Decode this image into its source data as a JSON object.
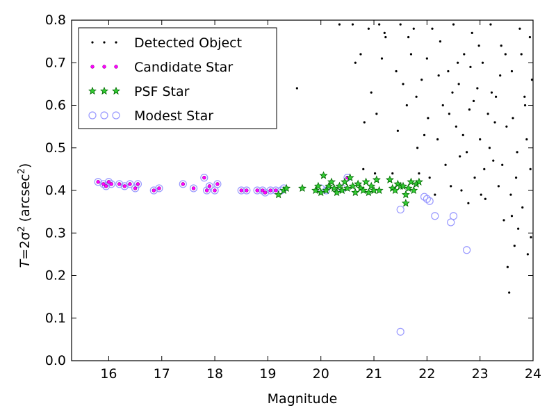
{
  "chart_data": {
    "type": "scatter",
    "xlabel": "Magnitude",
    "ylabel_main": "T",
    "ylabel_eq": "=2σ",
    "ylabel_exp": "2",
    "ylabel_unit_open": " (arcsec",
    "ylabel_unit_exp": "2",
    "ylabel_unit_close": ")",
    "xlim": [
      15.3,
      24
    ],
    "ylim": [
      0,
      0.8
    ],
    "xticks": [
      16,
      17,
      18,
      19,
      20,
      21,
      22,
      23,
      24
    ],
    "yticks": [
      0.0,
      0.1,
      0.2,
      0.3,
      0.4,
      0.5,
      0.6,
      0.7,
      0.8
    ],
    "ytick_labels": [
      "0.0",
      "0.1",
      "0.2",
      "0.3",
      "0.4",
      "0.5",
      "0.6",
      "0.7",
      "0.8"
    ],
    "legend_position": "upper-left",
    "colors": {
      "detected": "#000000",
      "candidate": "#ff00ff",
      "psf_fill": "#33cc33",
      "psf_edge": "#006600",
      "modest": "#9999ff"
    },
    "series": [
      {
        "name": "Detected Object",
        "marker": "dot",
        "points": [
          [
            19.55,
            0.64
          ],
          [
            20.35,
            0.79
          ],
          [
            20.6,
            0.79
          ],
          [
            20.65,
            0.7
          ],
          [
            20.75,
            0.72
          ],
          [
            20.8,
            0.45
          ],
          [
            20.9,
            0.78
          ],
          [
            20.95,
            0.63
          ],
          [
            21.05,
            0.58
          ],
          [
            21.1,
            0.79
          ],
          [
            21.15,
            0.71
          ],
          [
            21.2,
            0.77
          ],
          [
            21.35,
            0.44
          ],
          [
            21.45,
            0.54
          ],
          [
            21.5,
            0.79
          ],
          [
            21.55,
            0.65
          ],
          [
            21.65,
            0.76
          ],
          [
            21.7,
            0.72
          ],
          [
            21.75,
            0.78
          ],
          [
            21.8,
            0.62
          ],
          [
            21.85,
            0.44
          ],
          [
            21.9,
            0.66
          ],
          [
            21.95,
            0.53
          ],
          [
            22.0,
            0.71
          ],
          [
            22.05,
            0.43
          ],
          [
            22.1,
            0.78
          ],
          [
            22.15,
            0.39
          ],
          [
            22.2,
            0.52
          ],
          [
            22.25,
            0.75
          ],
          [
            22.3,
            0.6
          ],
          [
            22.35,
            0.46
          ],
          [
            22.4,
            0.68
          ],
          [
            22.45,
            0.41
          ],
          [
            22.5,
            0.79
          ],
          [
            22.55,
            0.55
          ],
          [
            22.6,
            0.65
          ],
          [
            22.65,
            0.4
          ],
          [
            22.7,
            0.72
          ],
          [
            22.75,
            0.49
          ],
          [
            22.8,
            0.59
          ],
          [
            22.85,
            0.77
          ],
          [
            22.9,
            0.43
          ],
          [
            22.95,
            0.64
          ],
          [
            23.0,
            0.52
          ],
          [
            23.05,
            0.7
          ],
          [
            23.1,
            0.38
          ],
          [
            23.15,
            0.58
          ],
          [
            23.2,
            0.79
          ],
          [
            23.25,
            0.47
          ],
          [
            23.3,
            0.62
          ],
          [
            23.35,
            0.41
          ],
          [
            23.4,
            0.74
          ],
          [
            23.45,
            0.33
          ],
          [
            23.5,
            0.55
          ],
          [
            23.55,
            0.16
          ],
          [
            23.6,
            0.68
          ],
          [
            23.65,
            0.27
          ],
          [
            23.7,
            0.49
          ],
          [
            23.75,
            0.78
          ],
          [
            23.8,
            0.36
          ],
          [
            23.85,
            0.6
          ],
          [
            23.9,
            0.25
          ],
          [
            23.95,
            0.45
          ],
          [
            23.98,
            0.66
          ],
          [
            23.52,
            0.22
          ],
          [
            23.72,
            0.31
          ],
          [
            23.88,
            0.52
          ],
          [
            23.62,
            0.57
          ],
          [
            23.42,
            0.46
          ],
          [
            23.22,
            0.63
          ],
          [
            23.02,
            0.39
          ],
          [
            22.82,
            0.69
          ],
          [
            22.62,
            0.48
          ],
          [
            22.42,
            0.58
          ],
          [
            22.22,
            0.67
          ],
          [
            22.02,
            0.57
          ],
          [
            21.82,
            0.5
          ],
          [
            21.62,
            0.6
          ],
          [
            21.42,
            0.68
          ],
          [
            21.22,
            0.76
          ],
          [
            21.02,
            0.44
          ],
          [
            20.82,
            0.56
          ],
          [
            22.58,
            0.7
          ],
          [
            22.78,
            0.37
          ],
          [
            22.98,
            0.74
          ],
          [
            23.18,
            0.5
          ],
          [
            23.38,
            0.67
          ],
          [
            23.58,
            0.39
          ],
          [
            23.78,
            0.72
          ],
          [
            23.96,
            0.29
          ],
          [
            22.48,
            0.63
          ],
          [
            22.68,
            0.53
          ],
          [
            22.88,
            0.61
          ],
          [
            23.08,
            0.45
          ],
          [
            23.28,
            0.56
          ],
          [
            23.48,
            0.72
          ],
          [
            23.68,
            0.43
          ],
          [
            23.84,
            0.62
          ],
          [
            23.94,
            0.76
          ],
          [
            23.6,
            0.34
          ]
        ]
      },
      {
        "name": "Candidate Star",
        "marker": "small-circle",
        "points": [
          [
            15.8,
            0.42
          ],
          [
            15.9,
            0.415
          ],
          [
            15.95,
            0.41
          ],
          [
            16.0,
            0.42
          ],
          [
            16.05,
            0.415
          ],
          [
            16.2,
            0.415
          ],
          [
            16.3,
            0.41
          ],
          [
            16.4,
            0.415
          ],
          [
            16.5,
            0.405
          ],
          [
            16.55,
            0.415
          ],
          [
            16.85,
            0.4
          ],
          [
            16.95,
            0.405
          ],
          [
            17.4,
            0.415
          ],
          [
            17.6,
            0.405
          ],
          [
            17.8,
            0.43
          ],
          [
            17.85,
            0.4
          ],
          [
            17.9,
            0.41
          ],
          [
            18.0,
            0.4
          ],
          [
            18.05,
            0.415
          ],
          [
            18.5,
            0.4
          ],
          [
            18.6,
            0.4
          ],
          [
            18.8,
            0.4
          ],
          [
            18.9,
            0.4
          ],
          [
            18.95,
            0.395
          ],
          [
            19.05,
            0.4
          ],
          [
            19.15,
            0.4
          ],
          [
            20.5,
            0.43
          ]
        ]
      },
      {
        "name": "PSF Star",
        "marker": "star",
        "points": [
          [
            19.2,
            0.39
          ],
          [
            19.3,
            0.4
          ],
          [
            19.35,
            0.405
          ],
          [
            19.65,
            0.405
          ],
          [
            19.9,
            0.4
          ],
          [
            19.95,
            0.41
          ],
          [
            20.0,
            0.395
          ],
          [
            20.05,
            0.435
          ],
          [
            20.1,
            0.4
          ],
          [
            20.15,
            0.41
          ],
          [
            20.2,
            0.42
          ],
          [
            20.25,
            0.405
          ],
          [
            20.3,
            0.395
          ],
          [
            20.35,
            0.41
          ],
          [
            20.4,
            0.4
          ],
          [
            20.45,
            0.42
          ],
          [
            20.5,
            0.405
          ],
          [
            20.55,
            0.43
          ],
          [
            20.6,
            0.41
          ],
          [
            20.65,
            0.395
          ],
          [
            20.7,
            0.415
          ],
          [
            20.75,
            0.405
          ],
          [
            20.8,
            0.4
          ],
          [
            20.85,
            0.42
          ],
          [
            20.9,
            0.395
          ],
          [
            20.95,
            0.41
          ],
          [
            21.0,
            0.4
          ],
          [
            21.05,
            0.425
          ],
          [
            21.1,
            0.4
          ],
          [
            21.3,
            0.425
          ],
          [
            21.35,
            0.405
          ],
          [
            21.4,
            0.4
          ],
          [
            21.45,
            0.415
          ],
          [
            21.5,
            0.41
          ],
          [
            21.6,
            0.39
          ],
          [
            21.65,
            0.405
          ],
          [
            21.7,
            0.42
          ],
          [
            21.75,
            0.4
          ],
          [
            21.8,
            0.415
          ],
          [
            21.85,
            0.42
          ],
          [
            21.6,
            0.37
          ],
          [
            21.55,
            0.41
          ]
        ]
      },
      {
        "name": "Modest Star",
        "marker": "open-circle",
        "points": [
          [
            15.8,
            0.42
          ],
          [
            15.9,
            0.415
          ],
          [
            15.95,
            0.41
          ],
          [
            16.0,
            0.42
          ],
          [
            16.05,
            0.415
          ],
          [
            16.2,
            0.415
          ],
          [
            16.3,
            0.41
          ],
          [
            16.4,
            0.415
          ],
          [
            16.5,
            0.405
          ],
          [
            16.55,
            0.415
          ],
          [
            16.85,
            0.4
          ],
          [
            16.95,
            0.405
          ],
          [
            17.4,
            0.415
          ],
          [
            17.6,
            0.405
          ],
          [
            17.8,
            0.43
          ],
          [
            17.85,
            0.4
          ],
          [
            17.9,
            0.41
          ],
          [
            18.0,
            0.4
          ],
          [
            18.05,
            0.415
          ],
          [
            18.5,
            0.4
          ],
          [
            18.6,
            0.4
          ],
          [
            18.8,
            0.4
          ],
          [
            18.9,
            0.4
          ],
          [
            18.95,
            0.395
          ],
          [
            19.05,
            0.4
          ],
          [
            19.15,
            0.4
          ],
          [
            19.25,
            0.4
          ],
          [
            19.3,
            0.405
          ],
          [
            20.0,
            0.405
          ],
          [
            20.1,
            0.4
          ],
          [
            20.4,
            0.405
          ],
          [
            20.5,
            0.43
          ],
          [
            21.5,
            0.355
          ],
          [
            21.5,
            0.068
          ],
          [
            21.95,
            0.385
          ],
          [
            22.0,
            0.38
          ],
          [
            22.05,
            0.375
          ],
          [
            22.15,
            0.34
          ],
          [
            22.45,
            0.325
          ],
          [
            22.5,
            0.34
          ],
          [
            22.75,
            0.26
          ]
        ]
      }
    ]
  }
}
